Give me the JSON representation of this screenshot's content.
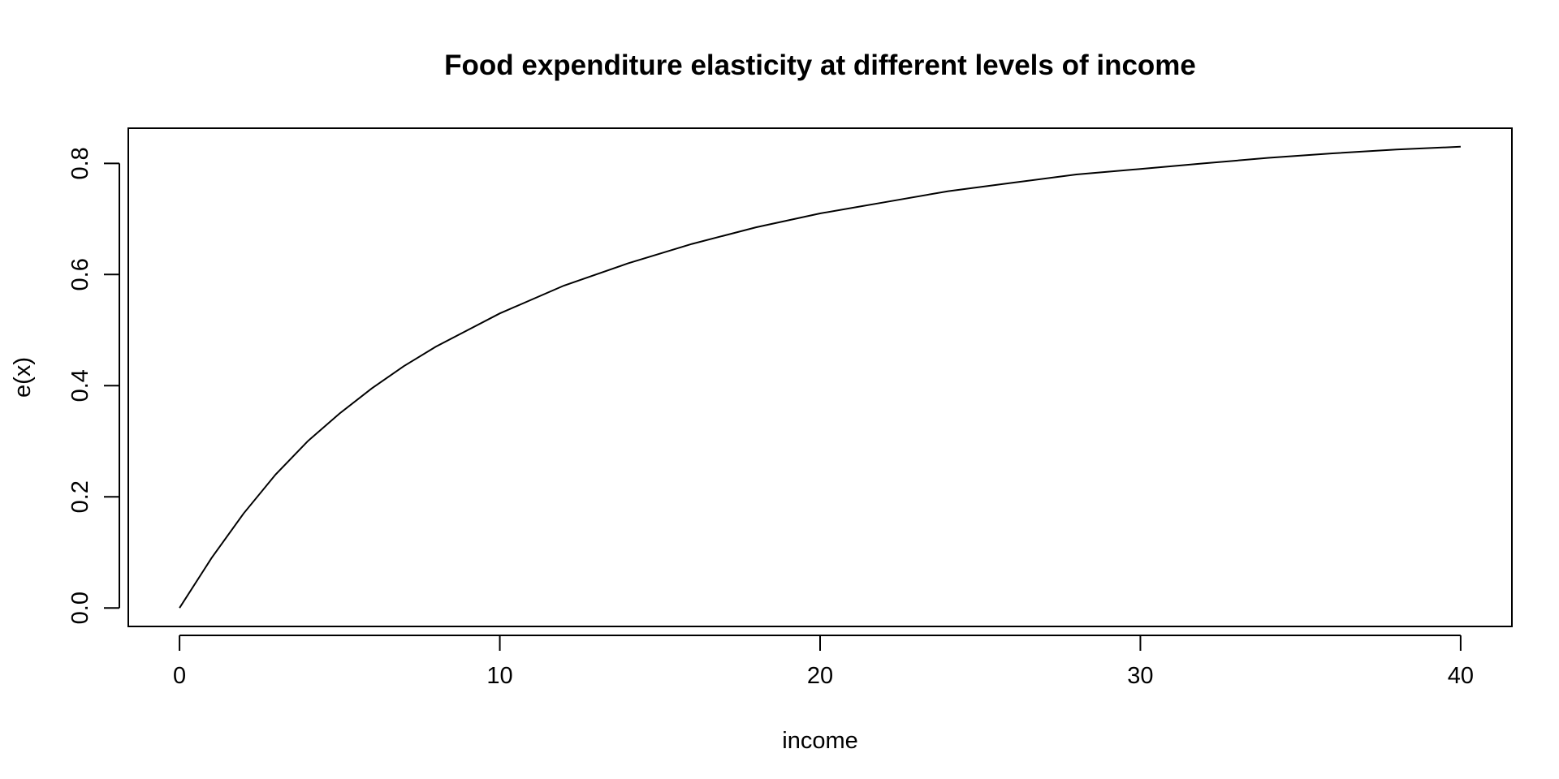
{
  "chart_data": {
    "type": "line",
    "title": "Food expenditure elasticity at different levels of income",
    "xlabel": "income",
    "ylabel": "e(x)",
    "xlim": [
      -1.6,
      41.6
    ],
    "ylim": [
      -0.0333,
      0.8633
    ],
    "x_ticks": [
      0,
      10,
      20,
      30,
      40
    ],
    "x_tick_labels": [
      "0",
      "10",
      "20",
      "30",
      "40"
    ],
    "y_ticks": [
      0.0,
      0.2,
      0.4,
      0.6,
      0.8
    ],
    "y_tick_labels": [
      "0.0",
      "0.2",
      "0.4",
      "0.6",
      "0.8"
    ],
    "grid": false,
    "legend": "none",
    "line_color": "#000000",
    "series": [
      {
        "x": [
          0,
          1,
          2,
          3,
          4,
          5,
          6,
          7,
          8,
          9,
          10,
          12,
          14,
          16,
          18,
          20,
          22,
          24,
          26,
          28,
          30,
          32,
          34,
          36,
          38,
          40
        ],
        "y": [
          0.0,
          0.09,
          0.17,
          0.24,
          0.3,
          0.35,
          0.395,
          0.435,
          0.47,
          0.5,
          0.53,
          0.58,
          0.62,
          0.655,
          0.685,
          0.71,
          0.73,
          0.75,
          0.765,
          0.78,
          0.79,
          0.8,
          0.81,
          0.818,
          0.825,
          0.83
        ]
      }
    ]
  }
}
